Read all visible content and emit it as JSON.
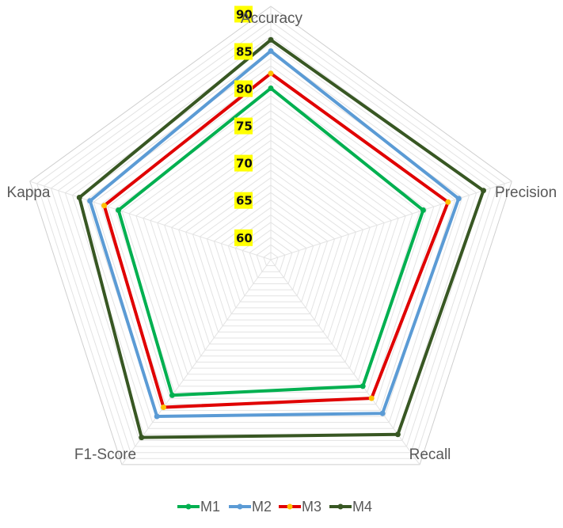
{
  "chart_data": {
    "type": "radar",
    "axes": [
      "Accuracy",
      "Precision",
      "Recall",
      "F1-Score",
      "Kappa"
    ],
    "range": [
      57,
      91
    ],
    "ticks": [
      60,
      65,
      70,
      75,
      80,
      85,
      90
    ],
    "tick_label_bg": "#ffff00",
    "grid": true,
    "legend_position": "bottom",
    "series": [
      {
        "name": "M1",
        "color": "#00b050",
        "values": [
          80.0,
          78.5,
          78.0,
          79.5,
          78.5
        ]
      },
      {
        "name": "M2",
        "color": "#5b9bd5",
        "values": [
          85.0,
          83.5,
          82.5,
          83.0,
          82.5
        ]
      },
      {
        "name": "M3",
        "color": "#e00000",
        "values": [
          82.0,
          82.0,
          80.0,
          81.5,
          80.5
        ]
      },
      {
        "name": "M4",
        "color": "#385723",
        "values": [
          86.5,
          87.0,
          86.0,
          86.5,
          84.0
        ]
      }
    ]
  }
}
